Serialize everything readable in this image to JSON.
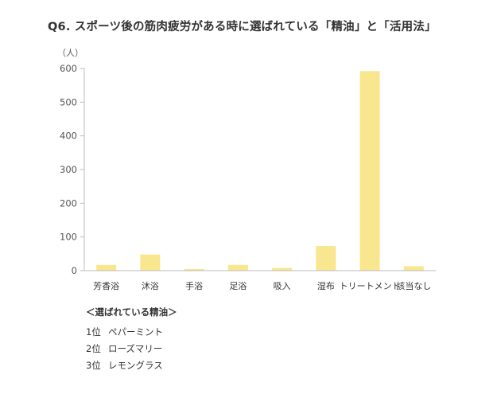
{
  "chart_data": {
    "type": "bar",
    "title": "Q6. スポーツ後の筋肉疲労がある時に選ばれている「精油」と「活用法」",
    "ylabel": "（人）",
    "xlabel": "",
    "categories": [
      "芳香浴",
      "沐浴",
      "手浴",
      "足浴",
      "吸入",
      "湿布",
      "トリートメント",
      "該当なし"
    ],
    "values": [
      17,
      48,
      5,
      17,
      8,
      73,
      592,
      13
    ],
    "ylim": [
      0,
      600
    ],
    "yticks": [
      0,
      100,
      200,
      300,
      400,
      500,
      600
    ],
    "grid": false,
    "bar_color": "#f8e78e",
    "axis_color": "#bbbbbb"
  },
  "note": {
    "title": "＜選ばれている精油＞",
    "rows": [
      {
        "rank": "1位",
        "name": "ペパーミント"
      },
      {
        "rank": "2位",
        "name": "ローズマリー"
      },
      {
        "rank": "3位",
        "name": "レモングラス"
      }
    ]
  }
}
